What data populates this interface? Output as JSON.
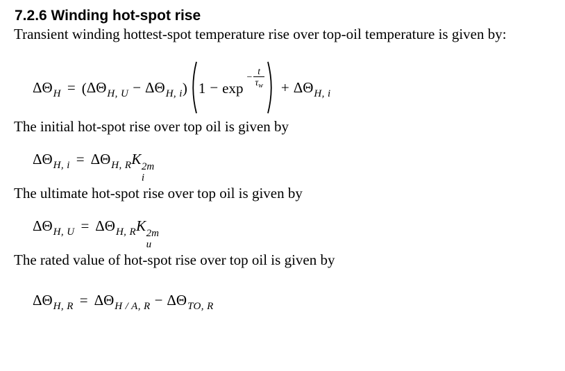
{
  "colors": {
    "background": "#ffffff",
    "text": "#000000"
  },
  "heading": "7.2.6 Winding hot-spot rise",
  "paragraphs": {
    "intro": "Transient winding hottest-spot temperature rise over top-oil temperature is given by:",
    "initial": "The initial hot-spot rise over top oil is given by",
    "ultimate": "The ultimate hot-spot rise over top oil is given by",
    "rated": "The rated value of hot-spot rise over top oil is given by"
  },
  "equations": {
    "transient": {
      "linear": "ΔΘ_H = (ΔΘ_H,U − ΔΘ_H,i)(1 − exp(−t/τ_w)) + ΔΘ_H,i",
      "tokens": [
        {
          "k": "sub",
          "b": "ΔΘ",
          "s": "H"
        },
        {
          "k": "rel",
          "x": "="
        },
        {
          "k": "txt",
          "x": "("
        },
        {
          "k": "sub",
          "b": "ΔΘ",
          "s": "H, U"
        },
        {
          "k": "op",
          "x": "−"
        },
        {
          "k": "sub",
          "b": "ΔΘ",
          "s": "H, i"
        },
        {
          "k": "txt",
          "x": ")"
        },
        {
          "k": "bigp",
          "x": "("
        },
        {
          "k": "txt",
          "x": "1"
        },
        {
          "k": "op",
          "x": "−"
        },
        {
          "k": "rom",
          "x": "exp"
        },
        {
          "k": "expfrac",
          "minus": "−",
          "num": "t",
          "den": "τ",
          "densub": "w"
        },
        {
          "k": "bigp",
          "x": ")"
        },
        {
          "k": "op",
          "x": "+"
        },
        {
          "k": "sub",
          "b": "ΔΘ",
          "s": "H, i"
        }
      ]
    },
    "initial": {
      "linear": "ΔΘ_H,i = ΔΘ_H,R K_i^2m",
      "tokens": [
        {
          "k": "sub",
          "b": "ΔΘ",
          "s": "H, i"
        },
        {
          "k": "rel",
          "x": "="
        },
        {
          "k": "sub",
          "b": "ΔΘ",
          "s": "H, R"
        },
        {
          "k": "subsup",
          "b": "K",
          "s": "i",
          "p": "2m"
        }
      ]
    },
    "ultimate": {
      "linear": "ΔΘ_H,U = ΔΘ_H,R K_u^2m",
      "tokens": [
        {
          "k": "sub",
          "b": "ΔΘ",
          "s": "H, U"
        },
        {
          "k": "rel",
          "x": "="
        },
        {
          "k": "sub",
          "b": "ΔΘ",
          "s": "H, R"
        },
        {
          "k": "subsup",
          "b": "K",
          "s": "u",
          "p": "2m"
        }
      ]
    },
    "rated": {
      "linear": "ΔΘ_H,R = ΔΘ_H/A,R − ΔΘ_TO,R",
      "tokens": [
        {
          "k": "sub",
          "b": "ΔΘ",
          "s": "H, R"
        },
        {
          "k": "rel",
          "x": "="
        },
        {
          "k": "sub",
          "b": "ΔΘ",
          "s": "H / A, R"
        },
        {
          "k": "op",
          "x": "−"
        },
        {
          "k": "sub",
          "b": "ΔΘ",
          "s": "TO, R"
        }
      ]
    }
  }
}
